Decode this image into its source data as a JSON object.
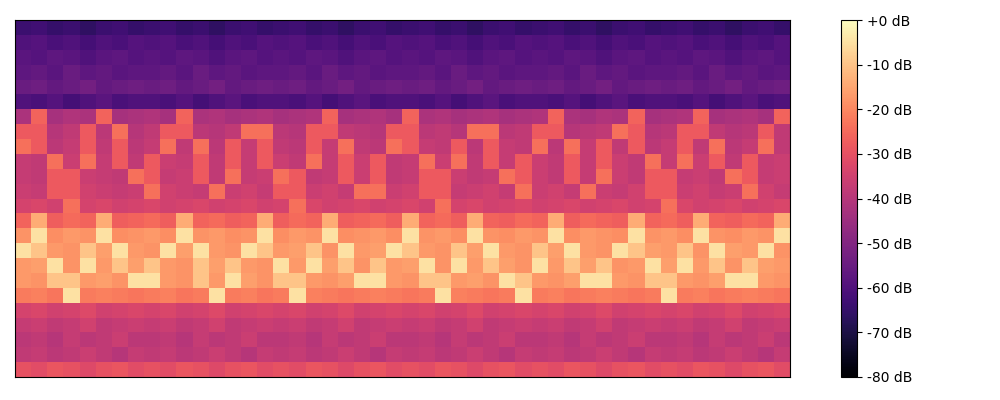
{
  "chart_data": {
    "type": "heatmap",
    "color": "magma",
    "tick_labels": false,
    "cells": [
      [
        -30,
        -31,
        -29,
        -30,
        -32,
        -30,
        -29,
        -31,
        -30,
        -31,
        -29,
        -30,
        -32,
        -30,
        -29,
        -31,
        -30,
        -31,
        -29,
        -30,
        -32,
        -30,
        -29,
        -31,
        -30,
        -31,
        -29,
        -30,
        -32,
        -30,
        -29,
        -31,
        -30,
        -31,
        -29,
        -30,
        -32,
        -30,
        -29,
        -31,
        -30,
        -31,
        -29,
        -30,
        -32,
        -30,
        -29,
        -31
      ],
      [
        -38,
        -37,
        -39,
        -38,
        -36,
        -38,
        -40,
        -37,
        -38,
        -37,
        -39,
        -38,
        -36,
        -38,
        -40,
        -37,
        -38,
        -37,
        -39,
        -38,
        -36,
        -38,
        -40,
        -37,
        -38,
        -37,
        -39,
        -38,
        -36,
        -38,
        -40,
        -37,
        -38,
        -37,
        -39,
        -38,
        -36,
        -38,
        -40,
        -37,
        -38,
        -37,
        -39,
        -38,
        -36,
        -38,
        -40,
        -37
      ],
      [
        -39,
        -38,
        -40,
        -37,
        -39,
        -38,
        -36,
        -39,
        -39,
        -38,
        -40,
        -37,
        -39,
        -38,
        -36,
        -39,
        -39,
        -38,
        -40,
        -37,
        -39,
        -38,
        -36,
        -39,
        -39,
        -38,
        -40,
        -37,
        -39,
        -38,
        -36,
        -39,
        -39,
        -38,
        -40,
        -37,
        -39,
        -38,
        -36,
        -39,
        -39,
        -38,
        -40,
        -37,
        -39,
        -38,
        -36,
        -39
      ],
      [
        -37,
        -36,
        -38,
        -37,
        -35,
        -38,
        -37,
        -36,
        -37,
        -36,
        -38,
        -37,
        -35,
        -38,
        -37,
        -36,
        -37,
        -36,
        -38,
        -37,
        -35,
        -38,
        -37,
        -36,
        -37,
        -36,
        -38,
        -37,
        -35,
        -38,
        -37,
        -36,
        -37,
        -36,
        -38,
        -37,
        -35,
        -38,
        -37,
        -36,
        -37,
        -36,
        -38,
        -37,
        -35,
        -38,
        -37,
        -36
      ],
      [
        -34,
        -33,
        -35,
        -34,
        -32,
        -35,
        -34,
        -33,
        -34,
        -33,
        -35,
        -34,
        -32,
        -35,
        -34,
        -33,
        -34,
        -33,
        -35,
        -34,
        -32,
        -35,
        -34,
        -33,
        -34,
        -33,
        -35,
        -34,
        -32,
        -35,
        -34,
        -33,
        -34,
        -33,
        -35,
        -34,
        -32,
        -35,
        -34,
        -33,
        -34,
        -33,
        -35,
        -34,
        -32,
        -35,
        -34,
        -33
      ],
      [
        -22,
        -21,
        -23,
        -5,
        -22,
        -21,
        -22,
        -23,
        -22,
        -21,
        -23,
        -22,
        -5,
        -22,
        -21,
        -23,
        -22,
        -5,
        -21,
        -22,
        -23,
        -22,
        -21,
        -22,
        -23,
        -22,
        -5,
        -21,
        -22,
        -23,
        -22,
        -5,
        -22,
        -21,
        -23,
        -22,
        -21,
        -22,
        -23,
        -22,
        -5,
        -22,
        -21,
        -23,
        -22,
        -21,
        -22,
        -23
      ],
      [
        -17,
        -18,
        -10,
        -10,
        -17,
        -16,
        -18,
        -5,
        -5,
        -17,
        -18,
        -10,
        -17,
        -5,
        -16,
        -18,
        -10,
        -10,
        -17,
        -18,
        -16,
        -5,
        -5,
        -17,
        -18,
        -10,
        -10,
        -17,
        -16,
        -18,
        -5,
        -10,
        -17,
        -18,
        -16,
        -5,
        -5,
        -17,
        -18,
        -10,
        -10,
        -17,
        -18,
        -16,
        -5,
        -5,
        -17,
        -18
      ],
      [
        -17,
        -16,
        -5,
        -18,
        -5,
        -17,
        -10,
        -16,
        -10,
        -17,
        -18,
        -10,
        -16,
        -10,
        -17,
        -18,
        -5,
        -17,
        -5,
        -16,
        -10,
        -18,
        -10,
        -17,
        -16,
        -5,
        -18,
        -5,
        -17,
        -10,
        -16,
        -18,
        -5,
        -17,
        -10,
        -16,
        -10,
        -18,
        -17,
        -5,
        -16,
        -5,
        -17,
        -10,
        -18,
        -10,
        -16,
        -17
      ],
      [
        -5,
        -10,
        -17,
        -18,
        -10,
        -16,
        -5,
        -17,
        -18,
        -5,
        -16,
        -5,
        -17,
        -18,
        -5,
        -10,
        -17,
        -16,
        -10,
        -18,
        -5,
        -17,
        -16,
        -5,
        -10,
        -17,
        -18,
        -10,
        -16,
        -5,
        -17,
        -18,
        -10,
        -16,
        -5,
        -17,
        -18,
        -5,
        -10,
        -16,
        -17,
        -10,
        -18,
        -5,
        -16,
        -17,
        -5,
        -18
      ],
      [
        -18,
        -5,
        -19,
        -17,
        -18,
        -5,
        -19,
        -18,
        -17,
        -19,
        -5,
        -18,
        -17,
        -19,
        -18,
        -5,
        -19,
        -17,
        -18,
        -5,
        -19,
        -18,
        -17,
        -19,
        -5,
        -18,
        -17,
        -19,
        -5,
        -18,
        -19,
        -17,
        -18,
        -5,
        -19,
        -17,
        -18,
        -19,
        -5,
        -18,
        -17,
        -19,
        -5,
        -18,
        -19,
        -17,
        -18,
        -5
      ],
      [
        -26,
        -14,
        -27,
        -25,
        -26,
        -14,
        -27,
        -26,
        -25,
        -27,
        -14,
        -26,
        -25,
        -27,
        -26,
        -14,
        -27,
        -25,
        -26,
        -14,
        -27,
        -26,
        -25,
        -27,
        -14,
        -26,
        -25,
        -27,
        -14,
        -26,
        -27,
        -25,
        -26,
        -14,
        -27,
        -25,
        -26,
        -27,
        -14,
        -26,
        -25,
        -27,
        -14,
        -26,
        -27,
        -25,
        -26,
        -14
      ],
      [
        -34,
        -33,
        -35,
        -24,
        -34,
        -33,
        -35,
        -34,
        -33,
        -35,
        -34,
        -33,
        -35,
        -34,
        -33,
        -35,
        -34,
        -24,
        -33,
        -35,
        -34,
        -33,
        -35,
        -34,
        -33,
        -35,
        -24,
        -34,
        -33,
        -35,
        -34,
        -33,
        -35,
        -34,
        -33,
        -35,
        -34,
        -33,
        -35,
        -34,
        -24,
        -33,
        -35,
        -34,
        -33,
        -35,
        -34,
        -33
      ],
      [
        -36,
        -37,
        -28,
        -28,
        -35,
        -36,
        -37,
        -36,
        -24,
        -35,
        -36,
        -37,
        -24,
        -36,
        -35,
        -37,
        -28,
        -28,
        -36,
        -35,
        -37,
        -24,
        -24,
        -36,
        -35,
        -28,
        -28,
        -37,
        -36,
        -35,
        -37,
        -24,
        -36,
        -35,
        -37,
        -24,
        -36,
        -37,
        -35,
        -28,
        -28,
        -36,
        -35,
        -37,
        -36,
        -24,
        -35,
        -37
      ],
      [
        -37,
        -38,
        -28,
        -28,
        -36,
        -37,
        -38,
        -24,
        -28,
        -37,
        -36,
        -28,
        -38,
        -24,
        -37,
        -36,
        -24,
        -28,
        -38,
        -37,
        -28,
        -36,
        -28,
        -38,
        -37,
        -28,
        -28,
        -36,
        -38,
        -37,
        -24,
        -28,
        -36,
        -38,
        -28,
        -37,
        -24,
        -36,
        -38,
        -28,
        -28,
        -37,
        -36,
        -38,
        -24,
        -28,
        -37,
        -36
      ],
      [
        -37,
        -38,
        -24,
        -36,
        -24,
        -37,
        -28,
        -38,
        -28,
        -36,
        -37,
        -28,
        -38,
        -28,
        -37,
        -28,
        -36,
        -38,
        -24,
        -37,
        -28,
        -36,
        -28,
        -38,
        -37,
        -24,
        -36,
        -24,
        -38,
        -28,
        -37,
        -28,
        -36,
        -38,
        -28,
        -37,
        -28,
        -36,
        -38,
        -24,
        -37,
        -24,
        -36,
        -28,
        -38,
        -28,
        -37,
        -36
      ],
      [
        -24,
        -28,
        -39,
        -37,
        -28,
        -38,
        -28,
        -39,
        -37,
        -24,
        -38,
        -24,
        -39,
        -28,
        -37,
        -28,
        -38,
        -39,
        -28,
        -37,
        -24,
        -38,
        -39,
        -24,
        -28,
        -37,
        -38,
        -28,
        -39,
        -28,
        -37,
        -38,
        -24,
        -39,
        -24,
        -37,
        -28,
        -38,
        -28,
        -39,
        -37,
        -28,
        -38,
        -24,
        -39,
        -37,
        -24,
        -38
      ],
      [
        -28,
        -28,
        -40,
        -38,
        -28,
        -39,
        -24,
        -40,
        -38,
        -28,
        -28,
        -39,
        -40,
        -38,
        -24,
        -24,
        -39,
        -40,
        -28,
        -28,
        -38,
        -39,
        -40,
        -28,
        -28,
        -39,
        -38,
        -40,
        -24,
        -24,
        -39,
        -38,
        -28,
        -28,
        -40,
        -39,
        -38,
        -24,
        -28,
        -40,
        -39,
        -28,
        -28,
        -38,
        -40,
        -39,
        -28,
        -38
      ],
      [
        -42,
        -26,
        -43,
        -41,
        -42,
        -26,
        -43,
        -42,
        -41,
        -43,
        -26,
        -42,
        -41,
        -43,
        -42,
        -41,
        -43,
        -42,
        -41,
        -26,
        -43,
        -42,
        -41,
        -43,
        -26,
        -42,
        -41,
        -43,
        -42,
        -41,
        -43,
        -42,
        -41,
        -26,
        -42,
        -43,
        -41,
        -42,
        -26,
        -43,
        -42,
        -41,
        -26,
        -43,
        -42,
        -41,
        -43,
        -26
      ],
      [
        -60,
        -61,
        -59,
        -62,
        -60,
        -58,
        -61,
        -60,
        -60,
        -61,
        -59,
        -62,
        -60,
        -58,
        -61,
        -60,
        -60,
        -61,
        -59,
        -62,
        -60,
        -58,
        -61,
        -60,
        -60,
        -61,
        -59,
        -62,
        -60,
        -58,
        -61,
        -60,
        -60,
        -61,
        -59,
        -62,
        -60,
        -58,
        -61,
        -60,
        -60,
        -61,
        -59,
        -62,
        -60,
        -58,
        -61,
        -60
      ],
      [
        -55,
        -54,
        -56,
        -55,
        -53,
        -56,
        -55,
        -54,
        -55,
        -54,
        -56,
        -55,
        -53,
        -56,
        -55,
        -54,
        -55,
        -54,
        -56,
        -55,
        -53,
        -56,
        -55,
        -54,
        -55,
        -54,
        -56,
        -55,
        -53,
        -56,
        -55,
        -54,
        -55,
        -54,
        -56,
        -55,
        -53,
        -56,
        -55,
        -54,
        -55,
        -54,
        -56,
        -55,
        -53,
        -56,
        -55,
        -54
      ],
      [
        -57,
        -56,
        -58,
        -55,
        -57,
        -56,
        -58,
        -57,
        -57,
        -56,
        -58,
        -55,
        -57,
        -56,
        -58,
        -57,
        -57,
        -56,
        -58,
        -55,
        -57,
        -56,
        -58,
        -57,
        -57,
        -56,
        -58,
        -55,
        -57,
        -56,
        -58,
        -57,
        -57,
        -56,
        -58,
        -55,
        -57,
        -56,
        -58,
        -57,
        -57,
        -56,
        -58,
        -55,
        -57,
        -56,
        -58,
        -57
      ],
      [
        -58,
        -59,
        -57,
        -58,
        -60,
        -58,
        -57,
        -59,
        -58,
        -59,
        -57,
        -58,
        -60,
        -58,
        -57,
        -59,
        -58,
        -59,
        -57,
        -58,
        -60,
        -58,
        -57,
        -59,
        -58,
        -59,
        -57,
        -58,
        -60,
        -58,
        -57,
        -59,
        -58,
        -59,
        -57,
        -58,
        -60,
        -58,
        -57,
        -59,
        -58,
        -59,
        -57,
        -58,
        -60,
        -58,
        -57,
        -59
      ],
      [
        -60,
        -59,
        -61,
        -60,
        -62,
        -60,
        -61,
        -59,
        -60,
        -59,
        -61,
        -60,
        -62,
        -60,
        -61,
        -59,
        -60,
        -59,
        -61,
        -60,
        -62,
        -60,
        -61,
        -59,
        -60,
        -59,
        -61,
        -60,
        -62,
        -60,
        -61,
        -59,
        -60,
        -59,
        -61,
        -60,
        -62,
        -60,
        -61,
        -59,
        -60,
        -59,
        -61,
        -60,
        -62,
        -60,
        -61,
        -59
      ],
      [
        -64,
        -63,
        -65,
        -64,
        -66,
        -64,
        -63,
        -65,
        -64,
        -63,
        -65,
        -64,
        -66,
        -64,
        -63,
        -65,
        -64,
        -63,
        -65,
        -64,
        -66,
        -64,
        -63,
        -65,
        -64,
        -63,
        -65,
        -64,
        -66,
        -64,
        -63,
        -65,
        -64,
        -63,
        -65,
        -64,
        -66,
        -64,
        -63,
        -65,
        -64,
        -63,
        -65,
        -64,
        -66,
        -64,
        -63,
        -65
      ]
    ],
    "colorbar_range": [
      -80,
      0
    ],
    "colorbar_ticks": [
      {
        "value": 0,
        "label": "+0 dB"
      },
      {
        "value": -10,
        "label": "-10 dB"
      },
      {
        "value": -20,
        "label": "-20 dB"
      },
      {
        "value": -30,
        "label": "-30 dB"
      },
      {
        "value": -40,
        "label": "-40 dB"
      },
      {
        "value": -50,
        "label": "-50 dB"
      },
      {
        "value": -60,
        "label": "-60 dB"
      },
      {
        "value": -70,
        "label": "-70 dB"
      },
      {
        "value": -80,
        "label": "-80 dB"
      }
    ]
  }
}
